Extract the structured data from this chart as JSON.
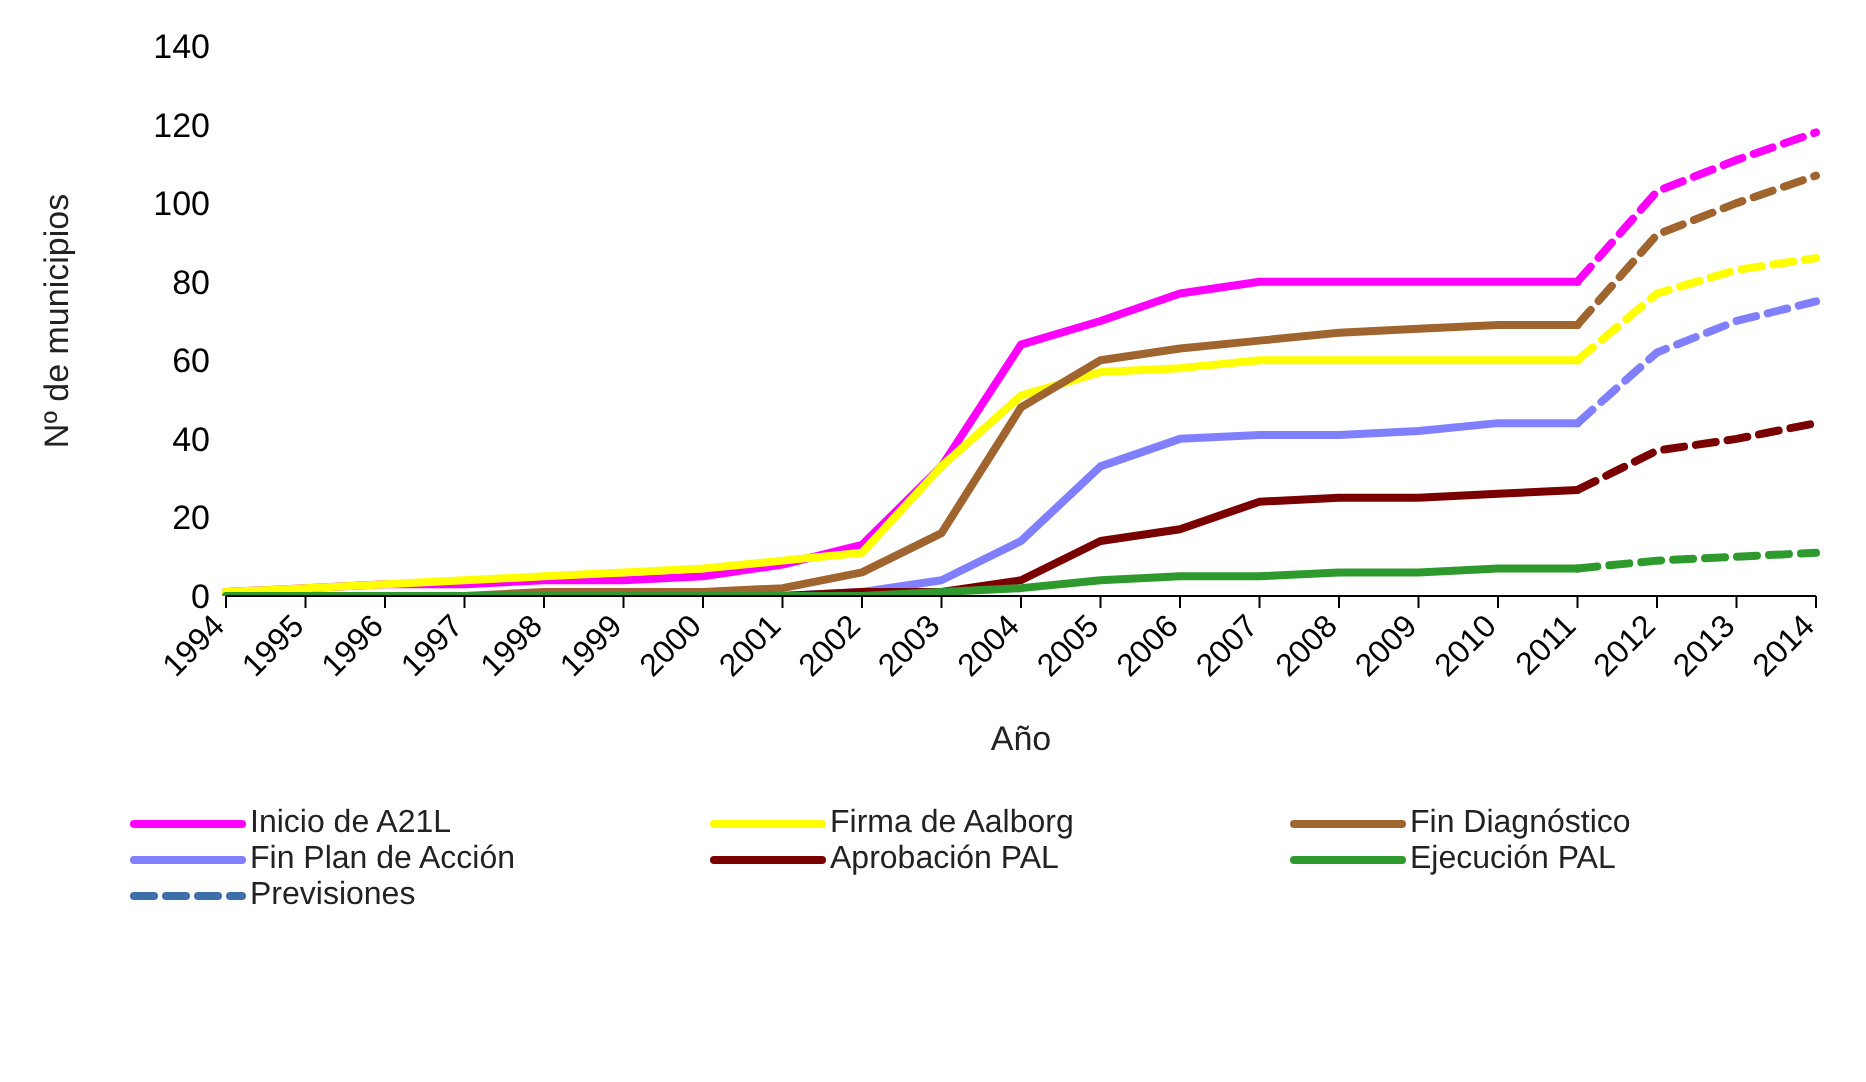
{
  "chart_data": {
    "type": "line",
    "xlabel": "Año",
    "ylabel": "Nº de municipios",
    "categories": [
      "1994",
      "1995",
      "1996",
      "1997",
      "1998",
      "1999",
      "2000",
      "2001",
      "2002",
      "2003",
      "2004",
      "2005",
      "2006",
      "2007",
      "2008",
      "2009",
      "2010",
      "2011",
      "2012",
      "2013",
      "2014"
    ],
    "ylim": [
      0,
      140
    ],
    "yticks": [
      0,
      20,
      40,
      60,
      80,
      100,
      120,
      140
    ],
    "grid": false,
    "legend": "bottom",
    "marker": "none",
    "line_style": "solid",
    "series": [
      {
        "name": "Inicio de A21L",
        "color": "#ff00ff",
        "values": [
          1,
          2,
          3,
          3,
          4,
          4,
          5,
          8,
          13,
          33,
          64,
          70,
          77,
          80,
          80,
          80,
          80,
          80,
          null,
          null,
          null
        ]
      },
      {
        "name": "Firma de Aalborg",
        "color": "#ffff00",
        "values": [
          1,
          2,
          3,
          4,
          5,
          6,
          7,
          9,
          11,
          33,
          51,
          57,
          58,
          60,
          60,
          60,
          60,
          60,
          null,
          null,
          null
        ]
      },
      {
        "name": "Fin Diagnóstico",
        "color": "#a0652e",
        "values": [
          null,
          null,
          0,
          0,
          1,
          1,
          1,
          2,
          6,
          16,
          48,
          60,
          63,
          65,
          67,
          68,
          69,
          69,
          null,
          null,
          null
        ]
      },
      {
        "name": "Fin Plan de Acción",
        "color": "#8080ff",
        "values": [
          null,
          null,
          null,
          null,
          null,
          null,
          null,
          0,
          1,
          4,
          14,
          33,
          40,
          41,
          41,
          42,
          44,
          44,
          null,
          null,
          null
        ]
      },
      {
        "name": "Aprobación PAL",
        "color": "#7a0000",
        "values": [
          null,
          null,
          0,
          0,
          0,
          0,
          0,
          0,
          1,
          1,
          4,
          14,
          17,
          24,
          25,
          25,
          26,
          27,
          null,
          null,
          null
        ]
      },
      {
        "name": "Ejecución PAL",
        "color": "#2e9a2e",
        "values": [
          0,
          0,
          0,
          0,
          0,
          0,
          0,
          0,
          0,
          1,
          2,
          4,
          5,
          5,
          6,
          6,
          7,
          7,
          null,
          null,
          null
        ]
      },
      {
        "color": "#ff00ff",
        "line_style": "dashed",
        "values": [
          null,
          null,
          null,
          null,
          null,
          null,
          null,
          null,
          null,
          null,
          null,
          null,
          null,
          null,
          null,
          null,
          null,
          80,
          103,
          111,
          118
        ]
      },
      {
        "color": "#ffff00",
        "line_style": "dashed",
        "values": [
          null,
          null,
          null,
          null,
          null,
          null,
          null,
          null,
          null,
          null,
          null,
          null,
          null,
          null,
          null,
          null,
          null,
          60,
          77,
          83,
          86
        ]
      },
      {
        "color": "#a0652e",
        "line_style": "dashed",
        "values": [
          null,
          null,
          null,
          null,
          null,
          null,
          null,
          null,
          null,
          null,
          null,
          null,
          null,
          null,
          null,
          null,
          null,
          69,
          92,
          100,
          107
        ]
      },
      {
        "color": "#8080ff",
        "line_style": "dashed",
        "values": [
          null,
          null,
          null,
          null,
          null,
          null,
          null,
          null,
          null,
          null,
          null,
          null,
          null,
          null,
          null,
          null,
          null,
          44,
          62,
          70,
          75
        ]
      },
      {
        "color": "#7a0000",
        "line_style": "dashed",
        "values": [
          null,
          null,
          null,
          null,
          null,
          null,
          null,
          null,
          null,
          null,
          null,
          null,
          null,
          null,
          null,
          null,
          null,
          27,
          37,
          40,
          44
        ]
      },
      {
        "color": "#2e9a2e",
        "line_style": "dashed",
        "values": [
          null,
          null,
          null,
          null,
          null,
          null,
          null,
          null,
          null,
          null,
          null,
          null,
          null,
          null,
          null,
          null,
          null,
          7,
          9,
          10,
          11
        ]
      },
      {
        "name": "Previsiones",
        "color": "#3f6fa8",
        "line_style": "dashed",
        "values": [
          null,
          null,
          null,
          null,
          null,
          null,
          null,
          null,
          null,
          null,
          null,
          null,
          null,
          null,
          null,
          null,
          null,
          null,
          null,
          null,
          null
        ]
      }
    ]
  }
}
